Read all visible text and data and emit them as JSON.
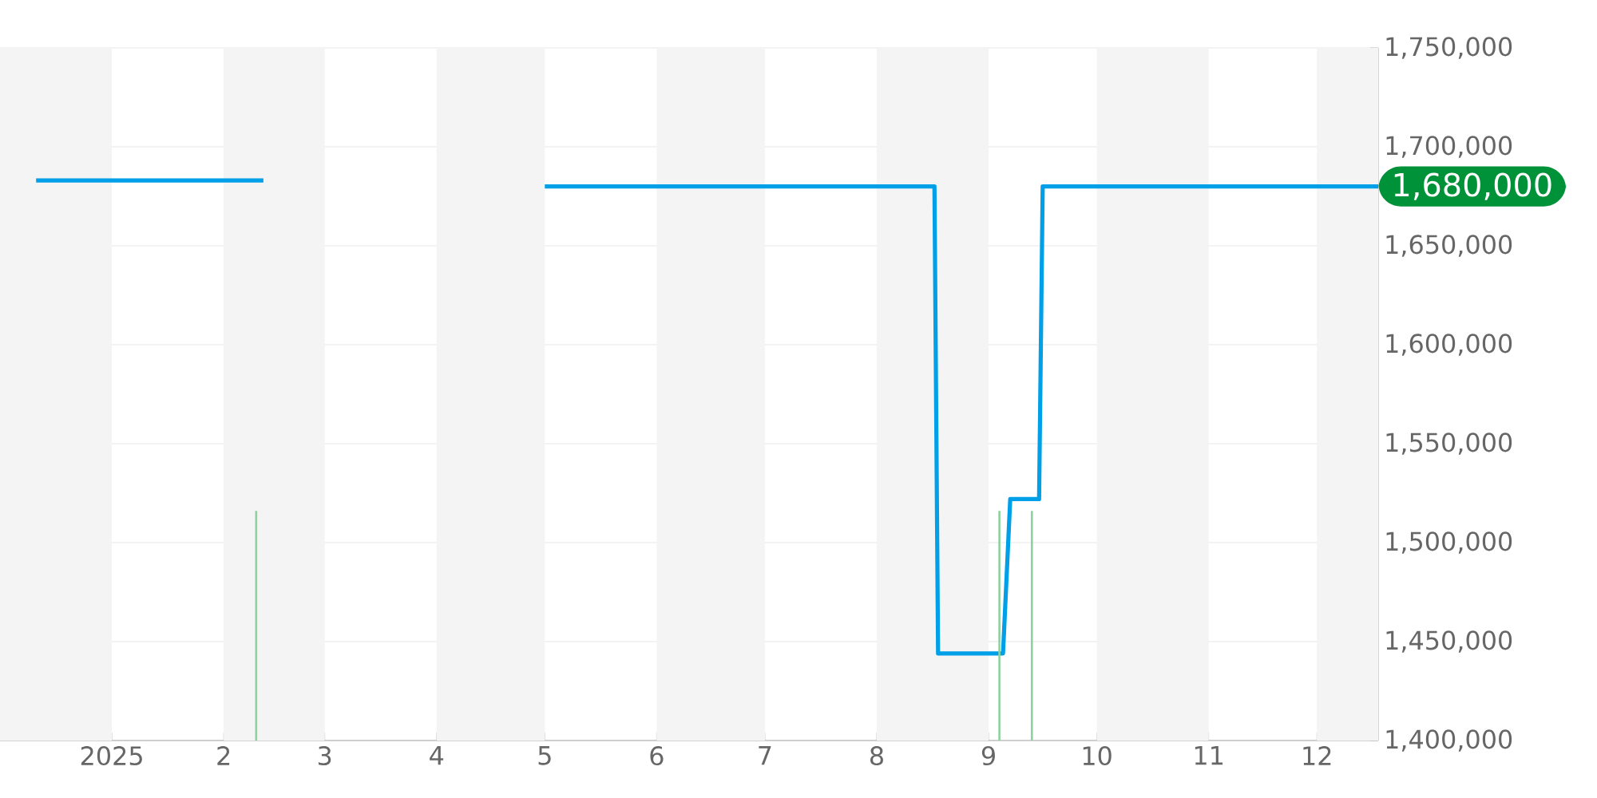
{
  "chart_data": {
    "type": "line",
    "xlim": [
      "2024-12-01",
      "2025-12-18"
    ],
    "ylim": [
      1400000,
      1750000
    ],
    "xticks": [
      {
        "value": "2025-01-01",
        "label": "2025"
      },
      {
        "value": "2025-02-01",
        "label": "2"
      },
      {
        "value": "2025-03-01",
        "label": "3"
      },
      {
        "value": "2025-04-01",
        "label": "4"
      },
      {
        "value": "2025-05-01",
        "label": "5"
      },
      {
        "value": "2025-06-01",
        "label": "6"
      },
      {
        "value": "2025-07-01",
        "label": "7"
      },
      {
        "value": "2025-08-01",
        "label": "8"
      },
      {
        "value": "2025-09-01",
        "label": "9"
      },
      {
        "value": "2025-10-01",
        "label": "10"
      },
      {
        "value": "2025-11-01",
        "label": "11"
      },
      {
        "value": "2025-12-01",
        "label": "12"
      }
    ],
    "yticks": [
      {
        "value": 1400000,
        "label": "1,400,000"
      },
      {
        "value": 1450000,
        "label": "1,450,000"
      },
      {
        "value": 1500000,
        "label": "1,500,000"
      },
      {
        "value": 1550000,
        "label": "1,550,000"
      },
      {
        "value": 1600000,
        "label": "1,600,000"
      },
      {
        "value": 1650000,
        "label": "1,650,000"
      },
      {
        "value": 1700000,
        "label": "1,700,000"
      },
      {
        "value": 1750000,
        "label": "1,750,000"
      }
    ],
    "grid": "y",
    "series": [
      {
        "color": "#00a0e9",
        "x": [
          "2024-12-11",
          "2025-02-12",
          "2025-03-15",
          "2025-05-01",
          "2025-08-17",
          "2025-08-18",
          "2025-09-05",
          "2025-09-07",
          "2025-09-15",
          "2025-09-16",
          "2025-12-18"
        ],
        "values": [
          1683000,
          1683000,
          null,
          1680000,
          1680000,
          1444000,
          1444000,
          1522000,
          1522000,
          1680000,
          1680000
        ]
      },
      {
        "type": "bar",
        "color": "#8fd19e",
        "x": [
          "2025-02-10",
          "2025-09-04",
          "2025-09-13"
        ],
        "values": [
          1516000,
          1516000,
          1516000
        ]
      }
    ],
    "bands": [
      {
        "axis": "x",
        "from": "2024-12-01",
        "to": "2025-01-01",
        "color": "#f4f4f4"
      },
      {
        "axis": "x",
        "from": "2025-02-01",
        "to": "2025-03-01",
        "color": "#f4f4f4"
      },
      {
        "axis": "x",
        "from": "2025-04-01",
        "to": "2025-05-01",
        "color": "#f4f4f4"
      },
      {
        "axis": "x",
        "from": "2025-06-01",
        "to": "2025-07-01",
        "color": "#f4f4f4"
      },
      {
        "axis": "x",
        "from": "2025-08-01",
        "to": "2025-09-01",
        "color": "#f4f4f4"
      },
      {
        "axis": "x",
        "from": "2025-10-01",
        "to": "2025-11-01",
        "color": "#f4f4f4"
      },
      {
        "axis": "x",
        "from": "2025-12-01",
        "to": "2025-12-18",
        "color": "#f4f4f4"
      }
    ],
    "annotations": [
      {
        "text": "1,680,000",
        "x": "2025-12-18",
        "y": 1680000
      }
    ]
  }
}
